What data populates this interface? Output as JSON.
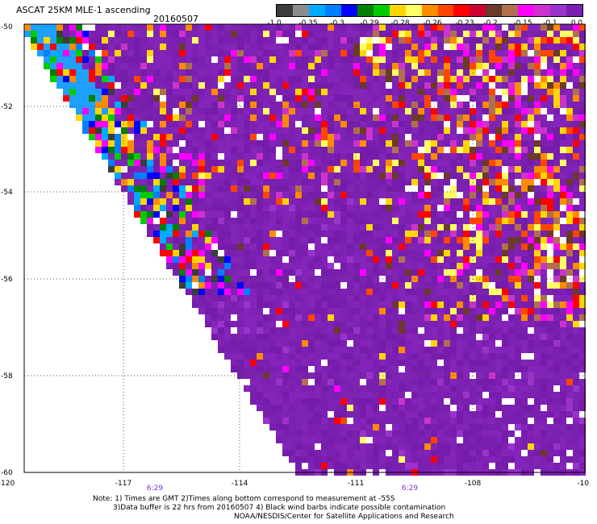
{
  "title": "ASCAT 25KM MLE-1 ascending",
  "date": "20160507",
  "colorbar": {
    "colors": [
      "#3c3c3c",
      "#8c8c8c",
      "#00aaff",
      "#0080ff",
      "#0000ff",
      "#008000",
      "#00cc00",
      "#ffd700",
      "#ffff66",
      "#ff8c00",
      "#ff4500",
      "#ff0000",
      "#cc0033",
      "#6b3a2a",
      "#b07050",
      "#ff00ff",
      "#cc33cc",
      "#9933cc",
      "#7a1fb0"
    ],
    "labels": [
      "-1.0",
      "-0.35",
      "-0.3",
      "-0.29",
      "-0.28",
      "-0.26",
      "-0.23",
      "-0.2",
      "-0.15",
      "-0.1",
      "0.0"
    ]
  },
  "map": {
    "lon_ticks": [
      "-120",
      "-117",
      "-114",
      "-111",
      "-108",
      "-10"
    ],
    "lat_ticks": [
      "-50",
      "-52",
      "-54",
      "-56",
      "-58",
      "-60"
    ],
    "time_labels": [
      "6:29",
      "6:29"
    ]
  },
  "notes": [
    "Note: 1) Times are GMT 2)Times along bottom correspond to measurement at -55S",
    "3)Data buffer is 22 hrs from 20160507 4) Black wind barbs indicate possible contamination",
    "NOAA/NESDIS/Center for Satellite Applications and Research"
  ]
}
